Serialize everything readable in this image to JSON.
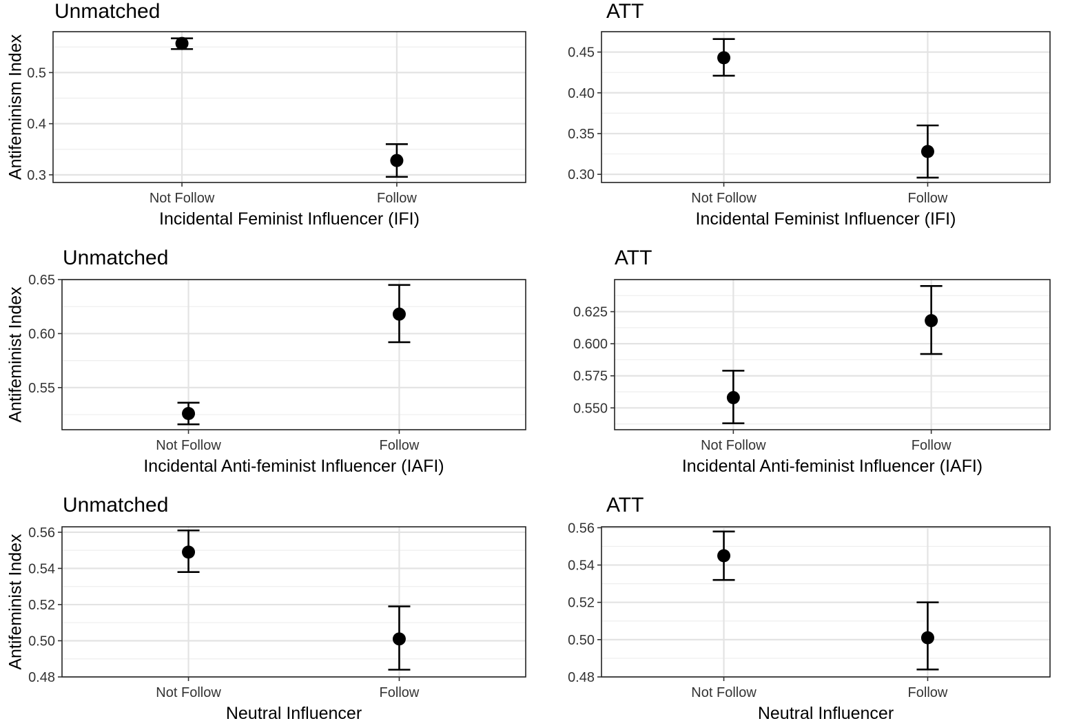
{
  "chart_data": [
    {
      "type": "scatter",
      "title": "Unmatched",
      "xlabel": "Incidental Feminist Influencer (IFI)",
      "ylabel": "Antifeminism Index",
      "categories": [
        "Not Follow",
        "Follow"
      ],
      "values": [
        0.557,
        0.328
      ],
      "lower": [
        0.546,
        0.296
      ],
      "upper": [
        0.567,
        0.36
      ],
      "ylim": [
        0.285,
        0.58
      ],
      "yticks": [
        0.3,
        0.4,
        0.5
      ],
      "ytick_labels": [
        "0.3",
        "0.4",
        "0.5"
      ],
      "grid": true
    },
    {
      "type": "scatter",
      "title": "ATT",
      "xlabel": "Incidental Feminist Influencer (IFI)",
      "ylabel": "",
      "categories": [
        "Not Follow",
        "Follow"
      ],
      "values": [
        0.443,
        0.328
      ],
      "lower": [
        0.421,
        0.296
      ],
      "upper": [
        0.466,
        0.36
      ],
      "ylim": [
        0.29,
        0.475
      ],
      "yticks": [
        0.3,
        0.35,
        0.4,
        0.45
      ],
      "ytick_labels": [
        "0.30",
        "0.35",
        "0.40",
        "0.45"
      ],
      "grid": true
    },
    {
      "type": "scatter",
      "title": "Unmatched",
      "xlabel": "Incidental Anti-feminist Influencer (IAFI)",
      "ylabel": "Antifeminist Index",
      "categories": [
        "Not Follow",
        "Follow"
      ],
      "values": [
        0.526,
        0.618
      ],
      "lower": [
        0.516,
        0.592
      ],
      "upper": [
        0.536,
        0.645
      ],
      "ylim": [
        0.511,
        0.65
      ],
      "yticks": [
        0.55,
        0.6,
        0.65
      ],
      "ytick_labels": [
        "0.55",
        "0.60",
        "0.65"
      ],
      "grid": true
    },
    {
      "type": "scatter",
      "title": "ATT",
      "xlabel": "Incidental Anti-feminist Influencer (IAFI)",
      "ylabel": "",
      "categories": [
        "Not Follow",
        "Follow"
      ],
      "values": [
        0.558,
        0.618
      ],
      "lower": [
        0.538,
        0.592
      ],
      "upper": [
        0.579,
        0.645
      ],
      "ylim": [
        0.533,
        0.65
      ],
      "yticks": [
        0.55,
        0.575,
        0.6,
        0.625
      ],
      "ytick_labels": [
        "0.550",
        "0.575",
        "0.600",
        "0.625"
      ],
      "grid": true
    },
    {
      "type": "scatter",
      "title": "Unmatched",
      "xlabel": "Neutral Influencer",
      "ylabel": "Antifeminist Index",
      "categories": [
        "Not Follow",
        "Follow"
      ],
      "values": [
        0.549,
        0.501
      ],
      "lower": [
        0.538,
        0.484
      ],
      "upper": [
        0.561,
        0.519
      ],
      "ylim": [
        0.48,
        0.563
      ],
      "yticks": [
        0.48,
        0.5,
        0.52,
        0.54,
        0.56
      ],
      "ytick_labels": [
        "0.48",
        "0.50",
        "0.52",
        "0.54",
        "0.56"
      ],
      "grid": true
    },
    {
      "type": "scatter",
      "title": "ATT",
      "xlabel": "Neutral Influencer",
      "ylabel": "",
      "categories": [
        "Not Follow",
        "Follow"
      ],
      "values": [
        0.545,
        0.501
      ],
      "lower": [
        0.532,
        0.484
      ],
      "upper": [
        0.558,
        0.52
      ],
      "ylim": [
        0.48,
        0.5605
      ],
      "yticks": [
        0.48,
        0.5,
        0.52,
        0.54,
        0.56
      ],
      "ytick_labels": [
        "0.48",
        "0.50",
        "0.52",
        "0.54",
        "0.56"
      ],
      "grid": true
    }
  ]
}
